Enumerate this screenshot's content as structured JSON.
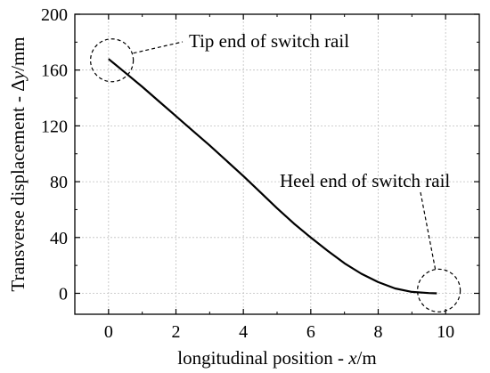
{
  "chart_data": {
    "type": "line",
    "title": "",
    "xlabel_parts": [
      "longitudinal position - ",
      "x",
      "/m"
    ],
    "ylabel_parts": [
      "Transverse displacement - Δ",
      "y",
      "/mm"
    ],
    "xlim": [
      -1,
      11
    ],
    "ylim": [
      -15,
      200
    ],
    "xticks": [
      0,
      2,
      4,
      6,
      8,
      10
    ],
    "yticks": [
      0,
      40,
      80,
      120,
      160,
      200
    ],
    "xtick_labels": [
      "0",
      "2",
      "4",
      "6",
      "8",
      "10"
    ],
    "ytick_labels": [
      "0",
      "40",
      "80",
      "120",
      "160",
      "200"
    ],
    "grid": true,
    "series": [
      {
        "color": "#000000",
        "x": [
          0,
          0.5,
          1,
          1.5,
          2,
          2.5,
          3,
          3.5,
          4,
          4.5,
          5,
          5.5,
          6,
          6.5,
          7,
          7.5,
          8,
          8.5,
          9,
          9.5,
          9.74
        ],
        "y": [
          168,
          158,
          148,
          137.5,
          127,
          116.5,
          106,
          95,
          84,
          72.5,
          61,
          50,
          40,
          30.5,
          21.5,
          14,
          8,
          3.5,
          1,
          0.2,
          0
        ]
      }
    ],
    "annotations": [
      {
        "text": "Tip end of switch rail",
        "target": [
          0.1,
          167
        ]
      },
      {
        "text": "Heel end of switch rail",
        "target": [
          9.8,
          2
        ]
      }
    ]
  }
}
